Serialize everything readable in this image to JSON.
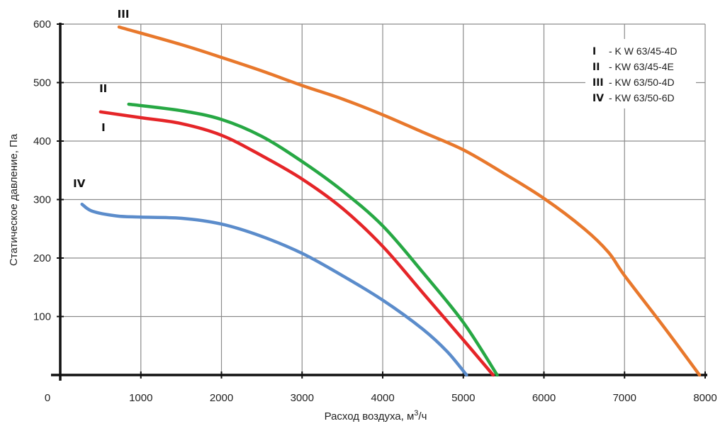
{
  "chart_data": {
    "type": "line",
    "xlabel_main": "Расход воздуха, м",
    "xlabel_sup": "3",
    "xlabel_tail": "/ч",
    "ylabel": "Статическое давление, Па",
    "xlim": [
      0,
      8000
    ],
    "ylim": [
      0,
      600
    ],
    "x_ticks": [
      1000,
      2000,
      3000,
      4000,
      5000,
      6000,
      7000,
      8000
    ],
    "x_origin_label": "0",
    "y_ticks": [
      100,
      200,
      300,
      400,
      500,
      600
    ],
    "grid": true,
    "legend_position": "top-right",
    "series": [
      {
        "name": "I",
        "legend_num": "I",
        "legend_text": "- K W 63/45-4D",
        "color": "#e52528",
        "points": [
          [
            500,
            450
          ],
          [
            1000,
            440
          ],
          [
            1500,
            430
          ],
          [
            2000,
            410
          ],
          [
            2500,
            375
          ],
          [
            3000,
            335
          ],
          [
            3500,
            285
          ],
          [
            4000,
            220
          ],
          [
            4500,
            140
          ],
          [
            5000,
            60
          ],
          [
            5370,
            0
          ]
        ]
      },
      {
        "name": "II",
        "legend_num": "II",
        "legend_text": "- KW 63/45-4E",
        "color": "#27a844",
        "points": [
          [
            850,
            463
          ],
          [
            1500,
            452
          ],
          [
            2000,
            437
          ],
          [
            2500,
            408
          ],
          [
            3000,
            365
          ],
          [
            3500,
            315
          ],
          [
            4000,
            255
          ],
          [
            4500,
            175
          ],
          [
            5000,
            90
          ],
          [
            5420,
            0
          ]
        ]
      },
      {
        "name": "III",
        "legend_num": "III",
        "legend_text": "- KW 63/50-4D",
        "color": "#e8782c",
        "points": [
          [
            730,
            595
          ],
          [
            1500,
            565
          ],
          [
            2000,
            543
          ],
          [
            2500,
            520
          ],
          [
            3000,
            495
          ],
          [
            3500,
            472
          ],
          [
            4000,
            445
          ],
          [
            4500,
            415
          ],
          [
            5000,
            385
          ],
          [
            5500,
            345
          ],
          [
            6000,
            302
          ],
          [
            6500,
            250
          ],
          [
            6800,
            210
          ],
          [
            7000,
            170
          ],
          [
            7500,
            80
          ],
          [
            7930,
            0
          ]
        ]
      },
      {
        "name": "IV",
        "legend_num": "IV",
        "legend_text": "- KW 63/50-6D",
        "color": "#5b8ccb",
        "points": [
          [
            270,
            292
          ],
          [
            400,
            280
          ],
          [
            700,
            272
          ],
          [
            1000,
            270
          ],
          [
            1500,
            268
          ],
          [
            2000,
            258
          ],
          [
            2500,
            237
          ],
          [
            3000,
            208
          ],
          [
            3500,
            170
          ],
          [
            4000,
            128
          ],
          [
            4500,
            78
          ],
          [
            4800,
            40
          ],
          [
            5040,
            0
          ]
        ]
      }
    ]
  }
}
